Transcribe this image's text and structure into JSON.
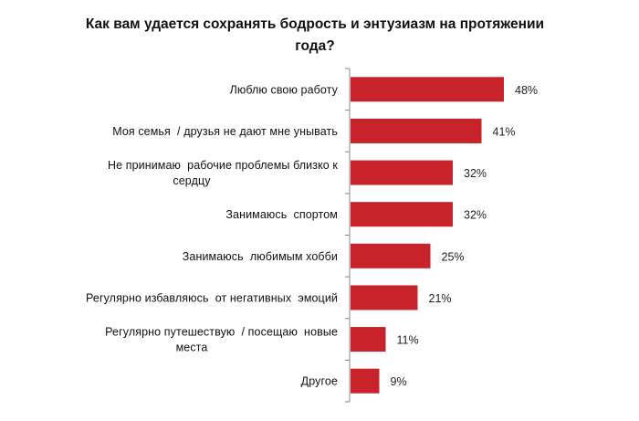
{
  "chart_data": {
    "type": "bar",
    "orientation": "horizontal",
    "title": [
      "Как вам удается сохранять бодрость и энтузиазм на протяжении",
      "года?"
    ],
    "categories": [
      [
        "Люблю свою работу"
      ],
      [
        "Моя семья  / друзья не дают мне унывать"
      ],
      [
        "Не принимаю  рабочие проблемы близко к",
        "сердцу"
      ],
      [
        "Занимаюсь  спортом"
      ],
      [
        "Занимаюсь  любимым хобби"
      ],
      [
        "Регулярно избавляюсь  от негативных  эмоций"
      ],
      [
        "Регулярно путешествую  / посещаю  новые",
        "места"
      ],
      [
        "Другое"
      ]
    ],
    "values": [
      48,
      41,
      32,
      32,
      25,
      21,
      11,
      9
    ],
    "value_labels": [
      "48%",
      "41%",
      "32%",
      "32%",
      "25%",
      "21%",
      "11%",
      "9%"
    ],
    "unit": "%",
    "xlim": [
      0,
      50
    ],
    "grid": false,
    "legend": "none",
    "bar_color": "#c8222a"
  }
}
